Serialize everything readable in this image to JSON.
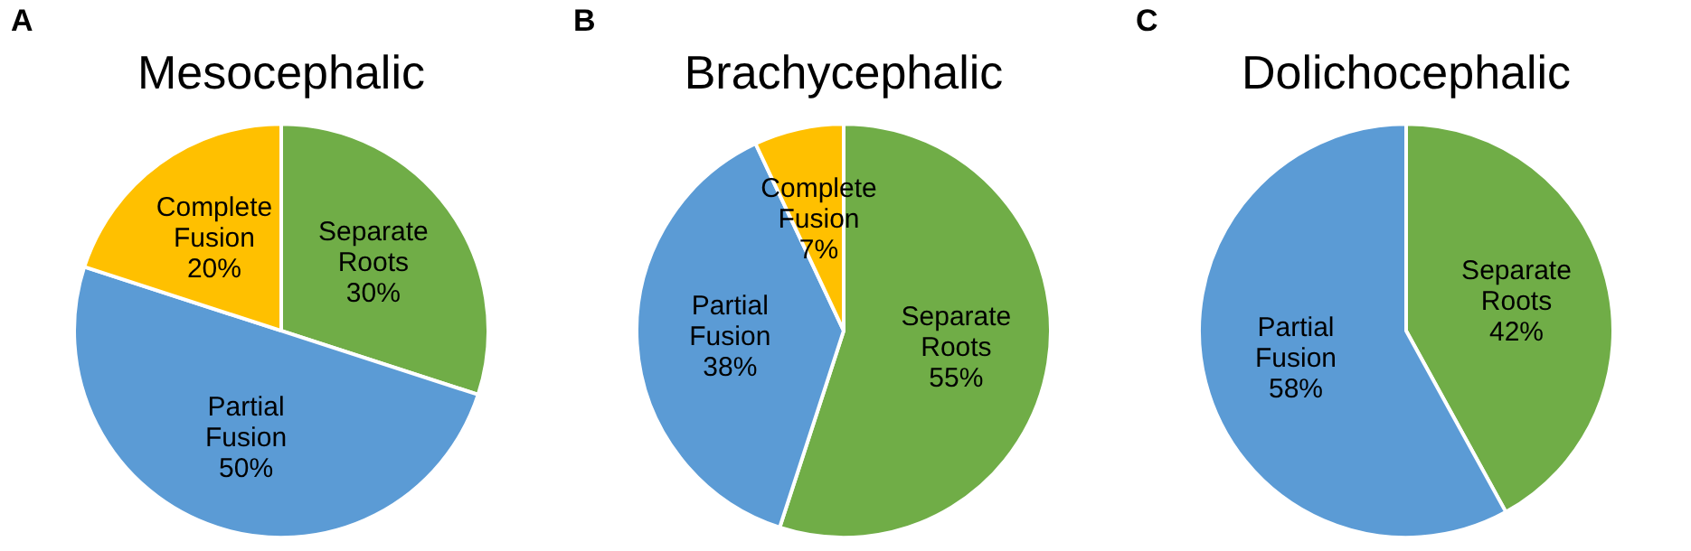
{
  "chart_data": [
    {
      "type": "pie",
      "title": "Mesocephalic",
      "annotations": [
        "A"
      ],
      "categories": [
        "Separate Roots",
        "Partial Fusion",
        "Complete Fusion"
      ],
      "values": [
        30,
        50,
        20
      ],
      "value_labels": [
        "30%",
        "50%",
        "20%"
      ],
      "colors": [
        "#70ad47",
        "#5b9bd5",
        "#ffc000"
      ],
      "legend": false
    },
    {
      "type": "pie",
      "title": "Brachycephalic",
      "annotations": [
        "B"
      ],
      "categories": [
        "Separate Roots",
        "Partial Fusion",
        "Complete Fusion"
      ],
      "values": [
        55,
        38,
        7
      ],
      "value_labels": [
        "55%",
        "38%",
        "7%"
      ],
      "colors": [
        "#70ad47",
        "#5b9bd5",
        "#ffc000"
      ],
      "legend": false
    },
    {
      "type": "pie",
      "title": "Dolichocephalic",
      "annotations": [
        "C"
      ],
      "categories": [
        "Separate Roots",
        "Partial Fusion"
      ],
      "values": [
        42,
        58
      ],
      "value_labels": [
        "42%",
        "58%"
      ],
      "colors": [
        "#70ad47",
        "#5b9bd5"
      ],
      "legend": false
    }
  ]
}
